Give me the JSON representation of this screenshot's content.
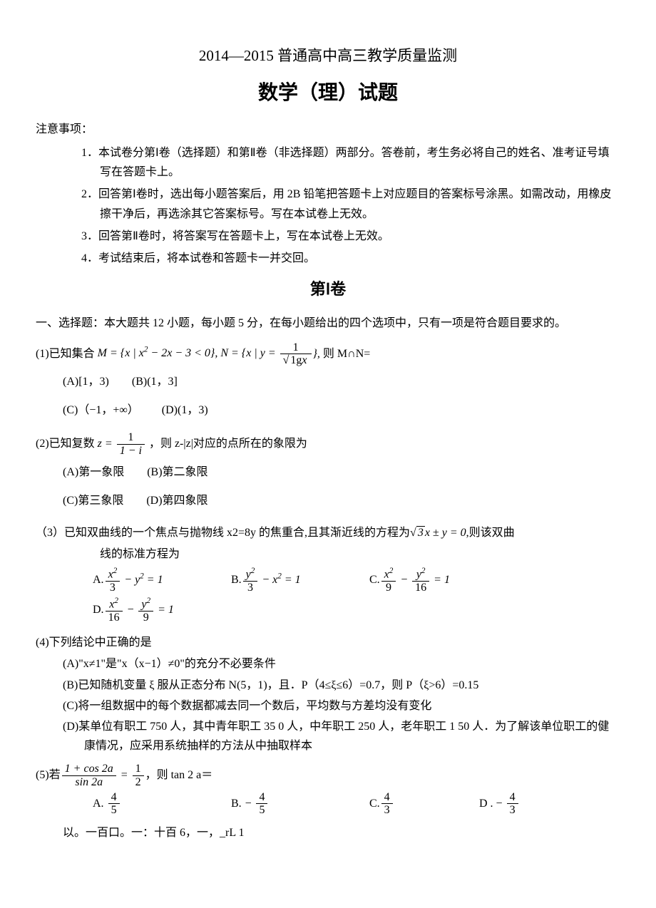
{
  "header": {
    "year_title": "2014—2015 普通高中高三教学质量监测",
    "main_title": "数学（理）试题"
  },
  "notice": {
    "label": "注意事项：",
    "items": [
      "1．本试卷分第Ⅰ卷（选择题）和第Ⅱ卷（非选择题）两部分。答卷前，考生务必将自己的姓名、准考证号填写在答题卡上。",
      "2．回答第Ⅰ卷时，选出每小题答案后，用 2B 铅笔把答题卡上对应题目的答案标号涂黑。如需改动，用橡皮擦干净后，再选涂其它答案标号。写在本试卷上无效。",
      "3．回答第Ⅱ卷时，将答案写在答题卡上，写在本试卷上无效。",
      "4．考试结束后，将本试卷和答题卡一并交回。"
    ]
  },
  "section1": {
    "title": "第Ⅰ卷",
    "heading": "一、选择题：本大题共 12 小题，每小题 5 分，在每小题给出的四个选项中，只有一项是符合题目要求的。"
  },
  "q1": {
    "stem_prefix": "(1)已知集合 ",
    "math_M": "M = {x | x² − 2x − 3 < 0}, ",
    "math_N_prefix": "N = {x | y = ",
    "frac_num": "1",
    "frac_den": "√(lg x)",
    "math_N_suffix": "}, ",
    "stem_suffix": "则 M∩N=",
    "optA": "(A)[1，3)",
    "optB": "(B)(1，3]",
    "optC": "(C)（−1，+∞）",
    "optD": "(D)(1，3)"
  },
  "q2": {
    "stem_prefix": "(2)已知复数 ",
    "frac_num": "1",
    "frac_den": "1 − i",
    "stem_mid": " ，则 z-|z|对应的点所在的象限为",
    "optA": "(A)第一象限",
    "optB": "(B)第二象限",
    "optC": "(C)第三象限",
    "optD": "(D)第四象限"
  },
  "q3": {
    "stem_line1": "（3）已知双曲线的一个焦点与抛物线 x2=8y 的焦重合,且其渐近线的方程为",
    "stem_math": "√3 x ± y = 0",
    "stem_line1_end": ",则该双曲",
    "stem_line2": "线的标准方程为",
    "optA_label": "A.",
    "optA_num": "x²",
    "optA_numden": "3",
    "optA_rest": " − y² = 1",
    "optB_label": "B.",
    "optB_num": "y²",
    "optB_numden": "3",
    "optB_rest": " − x² = 1",
    "optC_label": "C.",
    "optC_num1": "x²",
    "optC_den1": "9",
    "optC_num2": "y²",
    "optC_den2": "16",
    "optC_rest": " = 1",
    "optD_label": "D.",
    "optD_num1": "x²",
    "optD_den1": "16",
    "optD_num2": "y²",
    "optD_den2": "9",
    "optD_rest": " = 1"
  },
  "q4": {
    "stem": "(4)下列结论中正确的是",
    "optA": "(A)\"x≠1\"是\"x（x−1）≠0\"的充分不必要条件",
    "optB": "(B)已知随机变量 ξ 服从正态分布 N(5，1)，且．P（4≤ξ≤6）=0.7，则 P（ξ>6）=0.15",
    "optC": "(C)将一组数据中的每个数据都减去同一个数后，平均数与方差均没有变化",
    "optD": "(D)某单位有职工 750 人，其中青年职工 35 0 人，中年职工 250 人，老年职工 1 50 人．为了解该单位职工的健康情况，应采用系统抽样的方法从中抽取样本"
  },
  "q5": {
    "stem_prefix": "(5)若",
    "frac_num": "1 + cos 2a",
    "frac_den": "sin 2a",
    "frac2_num": "1",
    "frac2_den": "2",
    "stem_suffix": "，则 tan 2 a＝",
    "optA_label": "A.",
    "optA_num": "4",
    "optA_den": "5",
    "optB_label": "B.",
    "optB_neg": " − ",
    "optB_num": "4",
    "optB_den": "5",
    "optC_label": "C.",
    "optC_num": "4",
    "optC_den": "3",
    "optD_label": "D . − ",
    "optD_num": "4",
    "optD_den": "3",
    "footer": "以。一百口。一：十百 6，一，_rL 1"
  }
}
